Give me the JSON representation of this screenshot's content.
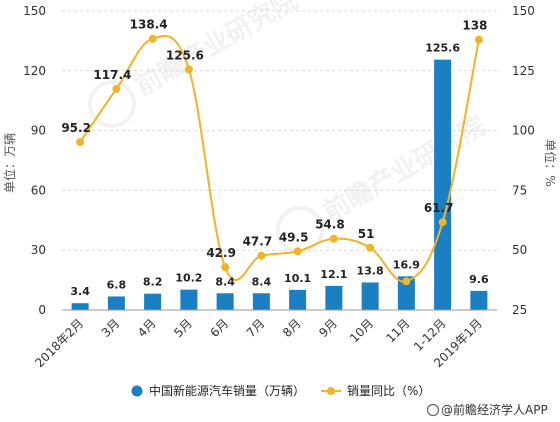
{
  "chart_data": {
    "type": "bar",
    "categories": [
      "2018年2月",
      "3月",
      "4月",
      "5月",
      "6月",
      "7月",
      "8月",
      "9月",
      "10月",
      "11月",
      "1-12月",
      "2019年1月"
    ],
    "series": [
      {
        "name": "中国新能源汽车销量（万辆）",
        "type": "bar",
        "axis": "left",
        "color": "#1a7fc3",
        "values": [
          3.4,
          6.8,
          8.2,
          10.2,
          8.4,
          8.4,
          10.1,
          12.1,
          13.8,
          16.9,
          125.6,
          9.6
        ]
      },
      {
        "name": "销量同比（%）",
        "type": "line",
        "axis": "right",
        "color": "#f2b326",
        "values": [
          95.2,
          117.4,
          138.4,
          125.6,
          42.9,
          47.7,
          49.5,
          54.8,
          51,
          37,
          61.7,
          138
        ]
      }
    ],
    "labels": {
      "bar": [
        "3.4",
        "6.8",
        "8.2",
        "10.2",
        "8.4",
        "8.4",
        "10.1",
        "12.1",
        "13.8",
        "16.9",
        "125.6",
        "9.6"
      ],
      "line": [
        "95.2",
        "117.4",
        "138.4",
        "125.6",
        "42.9",
        "47.7",
        "49.5",
        "54.8",
        "51",
        "",
        "61.7",
        "138"
      ]
    },
    "left_axis": {
      "title": "单位：万辆",
      "range": [
        0,
        150
      ],
      "ticks": [
        "0",
        "30",
        "60",
        "90",
        "120",
        "150"
      ]
    },
    "right_axis": {
      "title": "单位：%",
      "range": [
        25,
        150
      ],
      "ticks": [
        "25",
        "50",
        "75",
        "100",
        "125",
        "150"
      ]
    },
    "grid": "horizontal dashed",
    "legend": "bottom"
  },
  "watermark": "前瞻产业研究院",
  "source": "@前瞻经济学人APP"
}
